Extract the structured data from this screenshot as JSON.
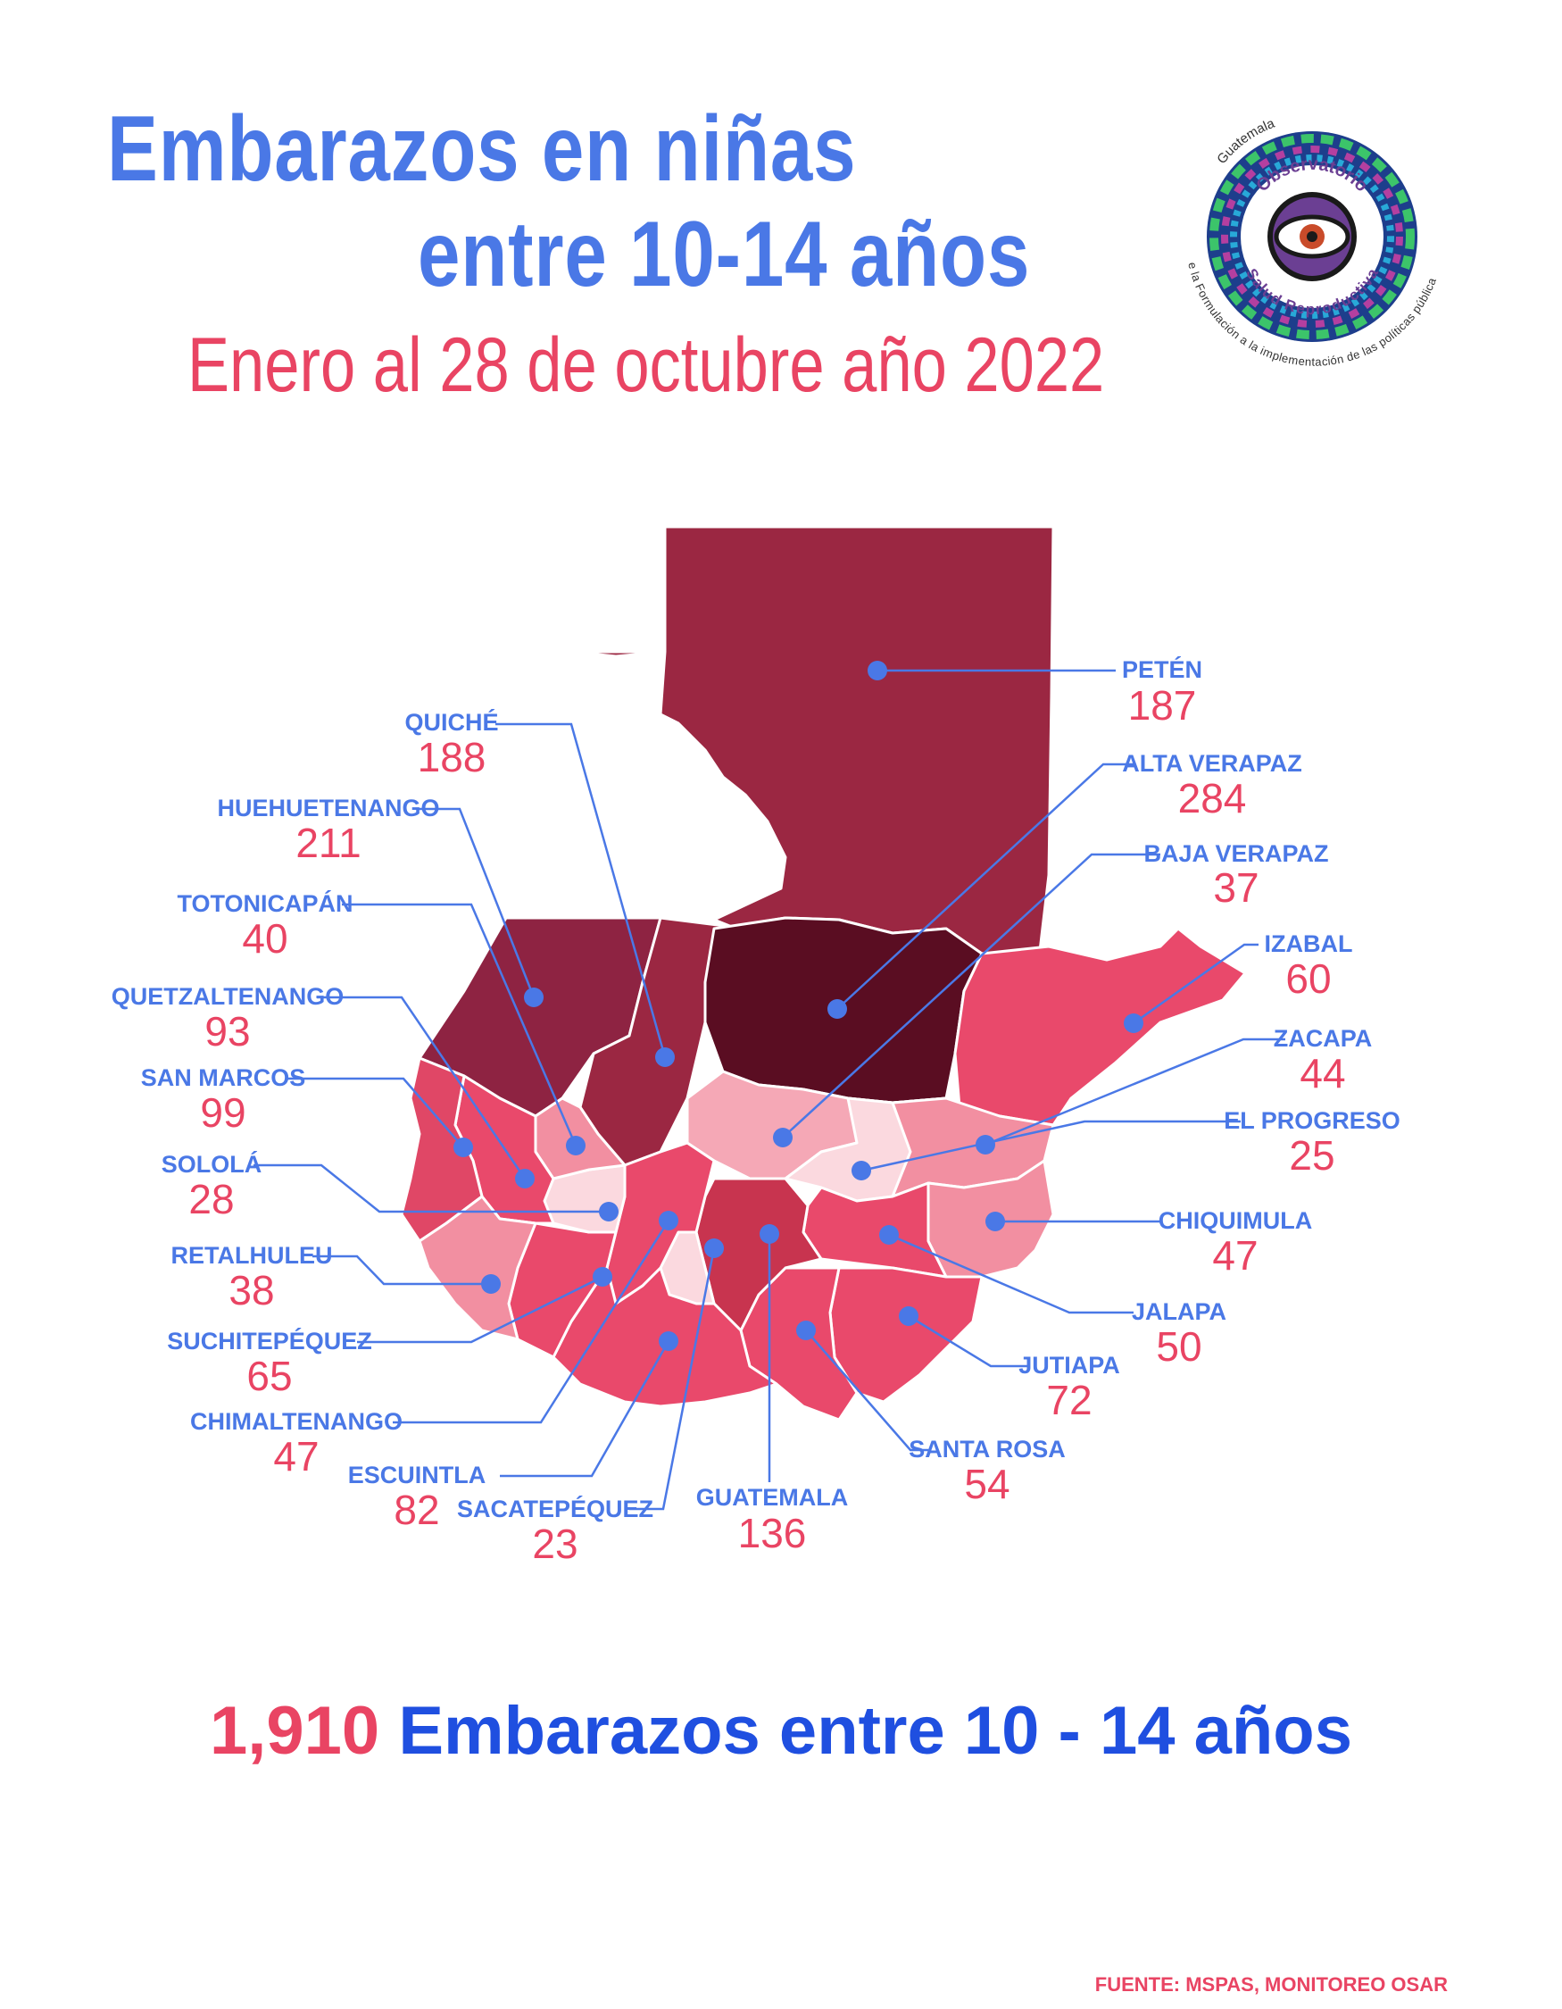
{
  "title": {
    "line1": "Embarazos en niñas",
    "line2": "entre 10-14 años",
    "subtitle": "Enero al 28 de octubre año 2022"
  },
  "logo": {
    "top_text": "Guatemala",
    "ring_text_1": "Observatorio",
    "ring_text_2": "Salud Reproductiva",
    "bottom_text": "De la Formulación a la implementación de las políticas públicas"
  },
  "colors": {
    "title_blue": "#4a78e6",
    "accent_red": "#e94463",
    "total_blue": "#1f4fe0",
    "marker_blue": "#4a78e6",
    "scale_darkest": "#5a0d22",
    "scale_dark": "#9b2742",
    "scale_mid": "#e9496b",
    "scale_light": "#f28fa1",
    "scale_lightest": "#fbd9df"
  },
  "departments": [
    {
      "name": "PETÉN",
      "value": "187"
    },
    {
      "name": "QUICHÉ",
      "value": "188"
    },
    {
      "name": "ALTA VERAPAZ",
      "value": "284"
    },
    {
      "name": "HUEHUETENANGO",
      "value": "211"
    },
    {
      "name": "BAJA VERAPAZ",
      "value": "37"
    },
    {
      "name": "TOTONICAPÁN",
      "value": "40"
    },
    {
      "name": "IZABAL",
      "value": "60"
    },
    {
      "name": "QUETZALTENANGO",
      "value": "93"
    },
    {
      "name": "ZACAPA",
      "value": "44"
    },
    {
      "name": "SAN MARCOS",
      "value": "99"
    },
    {
      "name": "EL PROGRESO",
      "value": "25"
    },
    {
      "name": "SOLOLÁ",
      "value": "28"
    },
    {
      "name": "CHIQUIMULA",
      "value": "47"
    },
    {
      "name": "RETALHULEU",
      "value": "38"
    },
    {
      "name": "JALAPA",
      "value": "50"
    },
    {
      "name": "SUCHITEPÉQUEZ",
      "value": "65"
    },
    {
      "name": "JUTIAPA",
      "value": "72"
    },
    {
      "name": "CHIMALTENANGO",
      "value": "47"
    },
    {
      "name": "SANTA ROSA",
      "value": "54"
    },
    {
      "name": "ESCUINTLA",
      "value": "82"
    },
    {
      "name": "GUATEMALA",
      "value": "136"
    },
    {
      "name": "SACATEPÉQUEZ",
      "value": "23"
    }
  ],
  "total": {
    "number": "1,910",
    "label": "Embarazos entre 10 - 14 años"
  },
  "source": "FUENTE: MSPAS, MONITOREO OSAR"
}
